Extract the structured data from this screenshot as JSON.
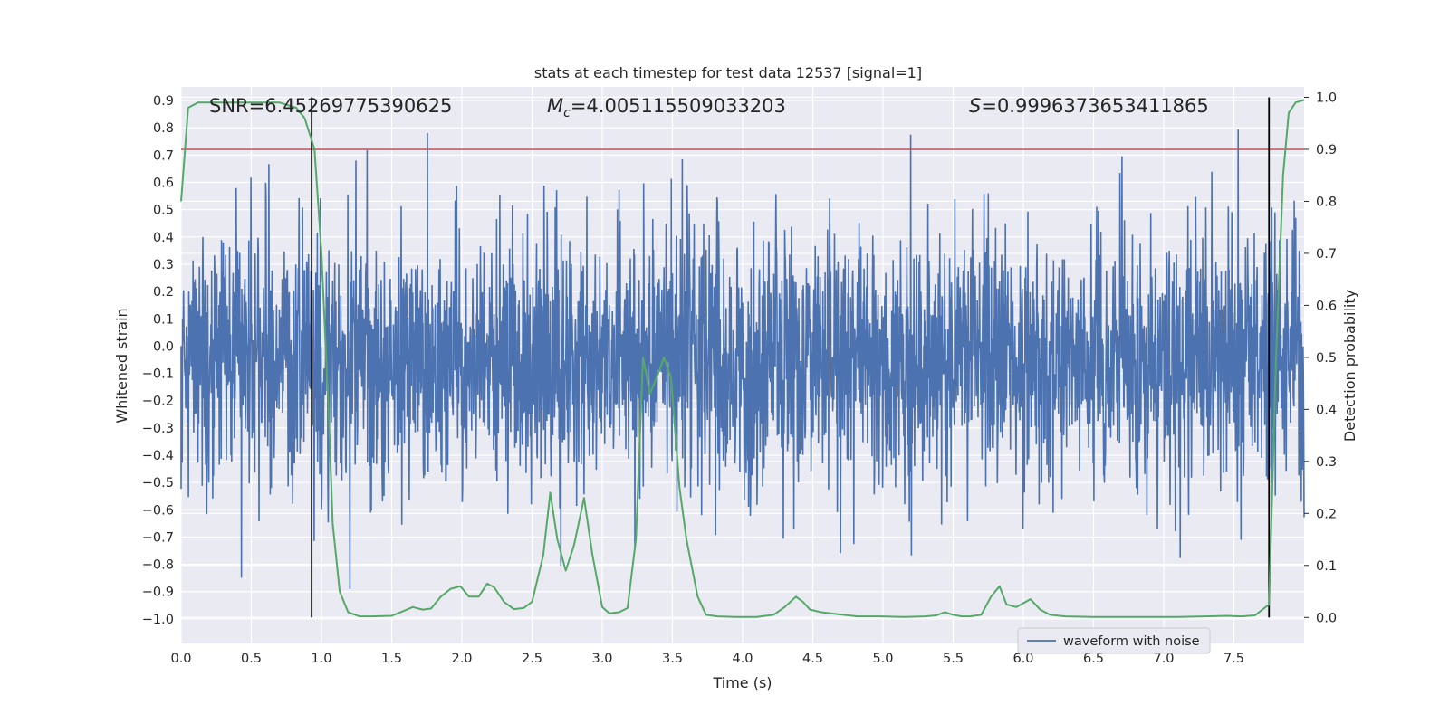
{
  "chart_data": {
    "type": "line",
    "title": "stats at each timestep for test data 12537 [signal=1]",
    "xlabel": "Time (s)",
    "ylabel": "Whitened strain",
    "ylabel_right": "Detection probability",
    "xlim": [
      0.0,
      8.0
    ],
    "ylim": [
      -1.09,
      0.95
    ],
    "ylim_right": [
      -0.05,
      1.02
    ],
    "x_ticks": [
      "0.0",
      "0.5",
      "1.0",
      "1.5",
      "2.0",
      "2.5",
      "3.0",
      "3.5",
      "4.0",
      "4.5",
      "5.0",
      "5.5",
      "6.0",
      "6.5",
      "7.0",
      "7.5"
    ],
    "y_ticks": [
      "0.9",
      "0.8",
      "0.7",
      "0.6",
      "0.5",
      "0.4",
      "0.3",
      "0.2",
      "0.1",
      "0.0",
      "−0.1",
      "−0.2",
      "−0.3",
      "−0.4",
      "−0.5",
      "−0.6",
      "−0.7",
      "−0.8",
      "−0.9",
      "−1.0"
    ],
    "y_ticks_right": [
      "1.0",
      "0.9",
      "0.8",
      "0.7",
      "0.6",
      "0.5",
      "0.4",
      "0.3",
      "0.2",
      "0.1",
      "0.0"
    ],
    "annotations": {
      "snr": "SNR=6.45269775390625",
      "mc_symbol": "M",
      "mc_subscript": "c",
      "mc_value": "=4.005115509033203",
      "s_symbol": "S",
      "s_value": "=0.9996373653411865"
    },
    "legend": {
      "label": "waveform with noise",
      "location": "lower right"
    },
    "threshold_line": {
      "value_right": 0.9,
      "color": "#c44e52"
    },
    "vertical_lines": {
      "x": [
        0.93,
        7.75
      ],
      "color": "#000000"
    },
    "series": [
      {
        "name": "waveform with noise",
        "axis": "left",
        "color": "#4c72b0",
        "description_range": [
          -1.0,
          0.9
        ]
      },
      {
        "axis": "right",
        "color": "#55a868",
        "x": [
          0.0,
          0.05,
          0.12,
          0.2,
          0.3,
          0.5,
          0.7,
          0.82,
          0.88,
          0.95,
          1.0,
          1.05,
          1.08,
          1.13,
          1.19,
          1.27,
          1.35,
          1.5,
          1.58,
          1.65,
          1.72,
          1.78,
          1.85,
          1.92,
          1.99,
          2.05,
          2.12,
          2.18,
          2.23,
          2.3,
          2.37,
          2.44,
          2.5,
          2.58,
          2.63,
          2.68,
          2.74,
          2.8,
          2.87,
          2.93,
          3.0,
          3.05,
          3.12,
          3.18,
          3.24,
          3.29,
          3.34,
          3.4,
          3.44,
          3.49,
          3.55,
          3.6,
          3.68,
          3.74,
          3.82,
          3.95,
          4.1,
          4.22,
          4.3,
          4.38,
          4.43,
          4.48,
          4.56,
          4.68,
          4.82,
          4.98,
          5.15,
          5.3,
          5.38,
          5.44,
          5.5,
          5.56,
          5.62,
          5.7,
          5.77,
          5.83,
          5.88,
          5.95,
          6.05,
          6.12,
          6.19,
          6.3,
          6.5,
          6.8,
          7.1,
          7.3,
          7.45,
          7.55,
          7.65,
          7.75,
          7.8,
          7.85,
          7.89,
          7.94,
          8.0
        ],
        "values": [
          0.8,
          0.98,
          0.99,
          0.99,
          0.99,
          0.99,
          0.99,
          0.98,
          0.96,
          0.9,
          0.7,
          0.4,
          0.18,
          0.05,
          0.01,
          0.002,
          0.002,
          0.003,
          0.012,
          0.02,
          0.015,
          0.017,
          0.04,
          0.055,
          0.06,
          0.04,
          0.04,
          0.065,
          0.058,
          0.03,
          0.016,
          0.018,
          0.03,
          0.12,
          0.24,
          0.15,
          0.09,
          0.14,
          0.23,
          0.12,
          0.02,
          0.008,
          0.01,
          0.018,
          0.15,
          0.5,
          0.43,
          0.47,
          0.5,
          0.46,
          0.25,
          0.15,
          0.04,
          0.005,
          0.002,
          0.001,
          0.001,
          0.005,
          0.02,
          0.04,
          0.03,
          0.015,
          0.01,
          0.006,
          0.002,
          0.002,
          0.001,
          0.002,
          0.004,
          0.01,
          0.005,
          0.002,
          0.002,
          0.005,
          0.04,
          0.06,
          0.025,
          0.02,
          0.035,
          0.015,
          0.005,
          0.002,
          0.001,
          0.001,
          0.001,
          0.002,
          0.003,
          0.002,
          0.004,
          0.025,
          0.5,
          0.85,
          0.97,
          0.99,
          0.995
        ]
      }
    ],
    "colors": {
      "background": "#eaeaf2",
      "grid": "#ffffff",
      "strain": "#4c72b0",
      "probability": "#55a868"
    }
  }
}
